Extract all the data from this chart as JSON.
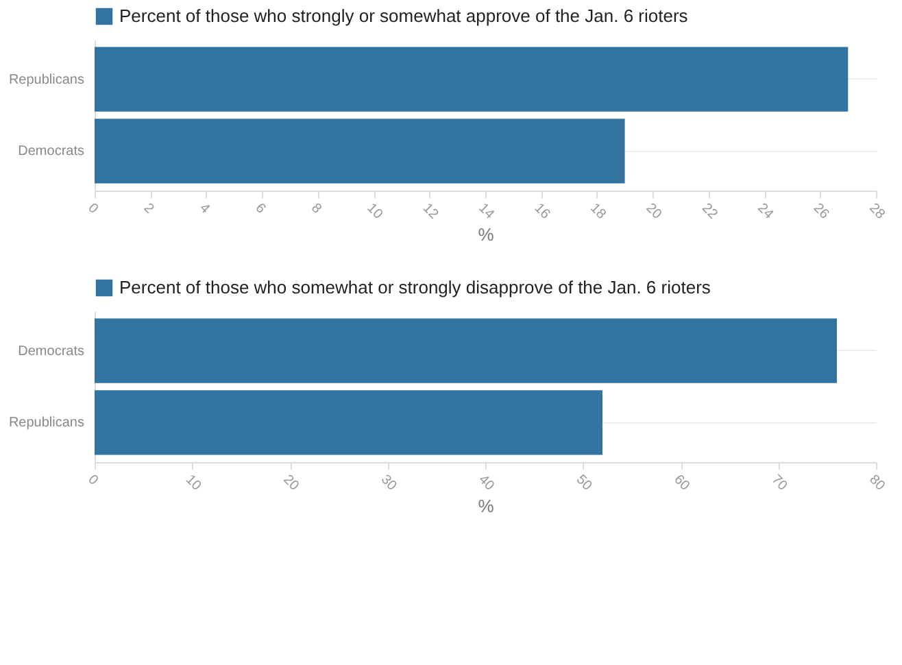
{
  "chart_data": [
    {
      "type": "bar",
      "orientation": "horizontal",
      "categories": [
        "Republicans",
        "Democrats"
      ],
      "series": [
        {
          "name": "Percent of those who strongly or somewhat approve of the Jan. 6 rioters",
          "color": "#33739f",
          "values": [
            27,
            19
          ]
        }
      ],
      "xlabel": "%",
      "xlim": [
        0,
        28
      ],
      "xticks": [
        0,
        2,
        4,
        6,
        8,
        10,
        12,
        14,
        16,
        18,
        20,
        22,
        24,
        26,
        28
      ],
      "grid": "y",
      "legend": "top left"
    },
    {
      "type": "bar",
      "orientation": "horizontal",
      "categories": [
        "Democrats",
        "Republicans"
      ],
      "series": [
        {
          "name": "Percent of those who somewhat or strongly disapprove of the Jan. 6 rioters",
          "color": "#33739f",
          "values": [
            76,
            52
          ]
        }
      ],
      "xlabel": "%",
      "xlim": [
        0,
        80
      ],
      "xticks": [
        0,
        10,
        20,
        30,
        40,
        50,
        60,
        70,
        80
      ],
      "grid": "y",
      "legend": "top left"
    }
  ]
}
